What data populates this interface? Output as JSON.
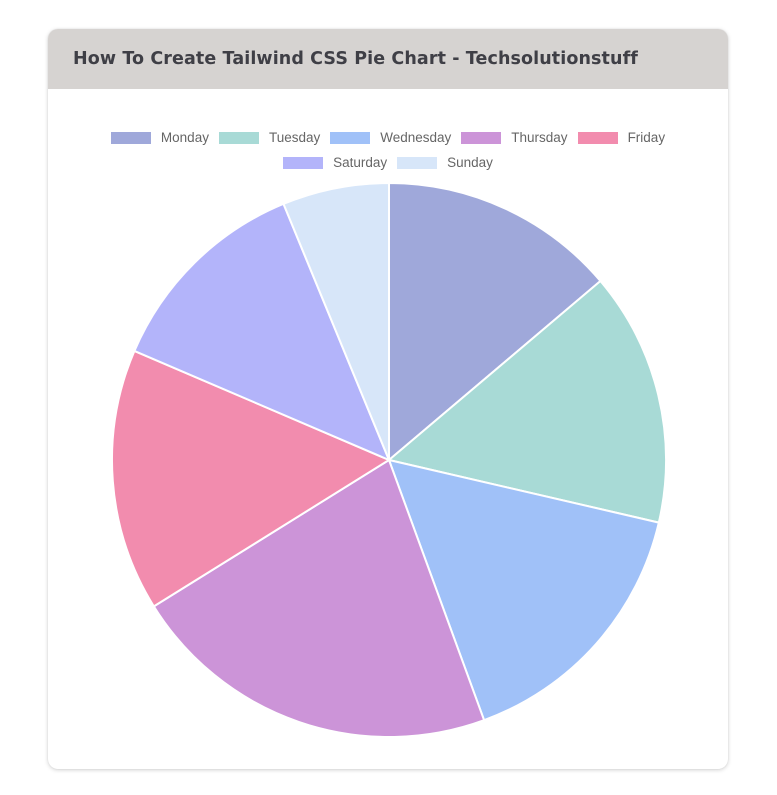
{
  "card": {
    "title": "How To Create Tailwind CSS Pie Chart - Techsolutionstuff"
  },
  "chart_data": {
    "type": "pie",
    "title": "",
    "categories": [
      "Monday",
      "Tuesday",
      "Wednesday",
      "Thursday",
      "Friday",
      "Saturday",
      "Sunday"
    ],
    "values": [
      14,
      15,
      16,
      22,
      15.5,
      12.5,
      6.3
    ],
    "colors": [
      "#9fa8da",
      "#a8dad6",
      "#a0c1f8",
      "#cc94d8",
      "#f28cae",
      "#b3b4fa",
      "#d7e6f9"
    ],
    "start_angle": "top",
    "direction": "clockwise",
    "legend_position": "top",
    "slice_border_color": "#ffffff"
  }
}
